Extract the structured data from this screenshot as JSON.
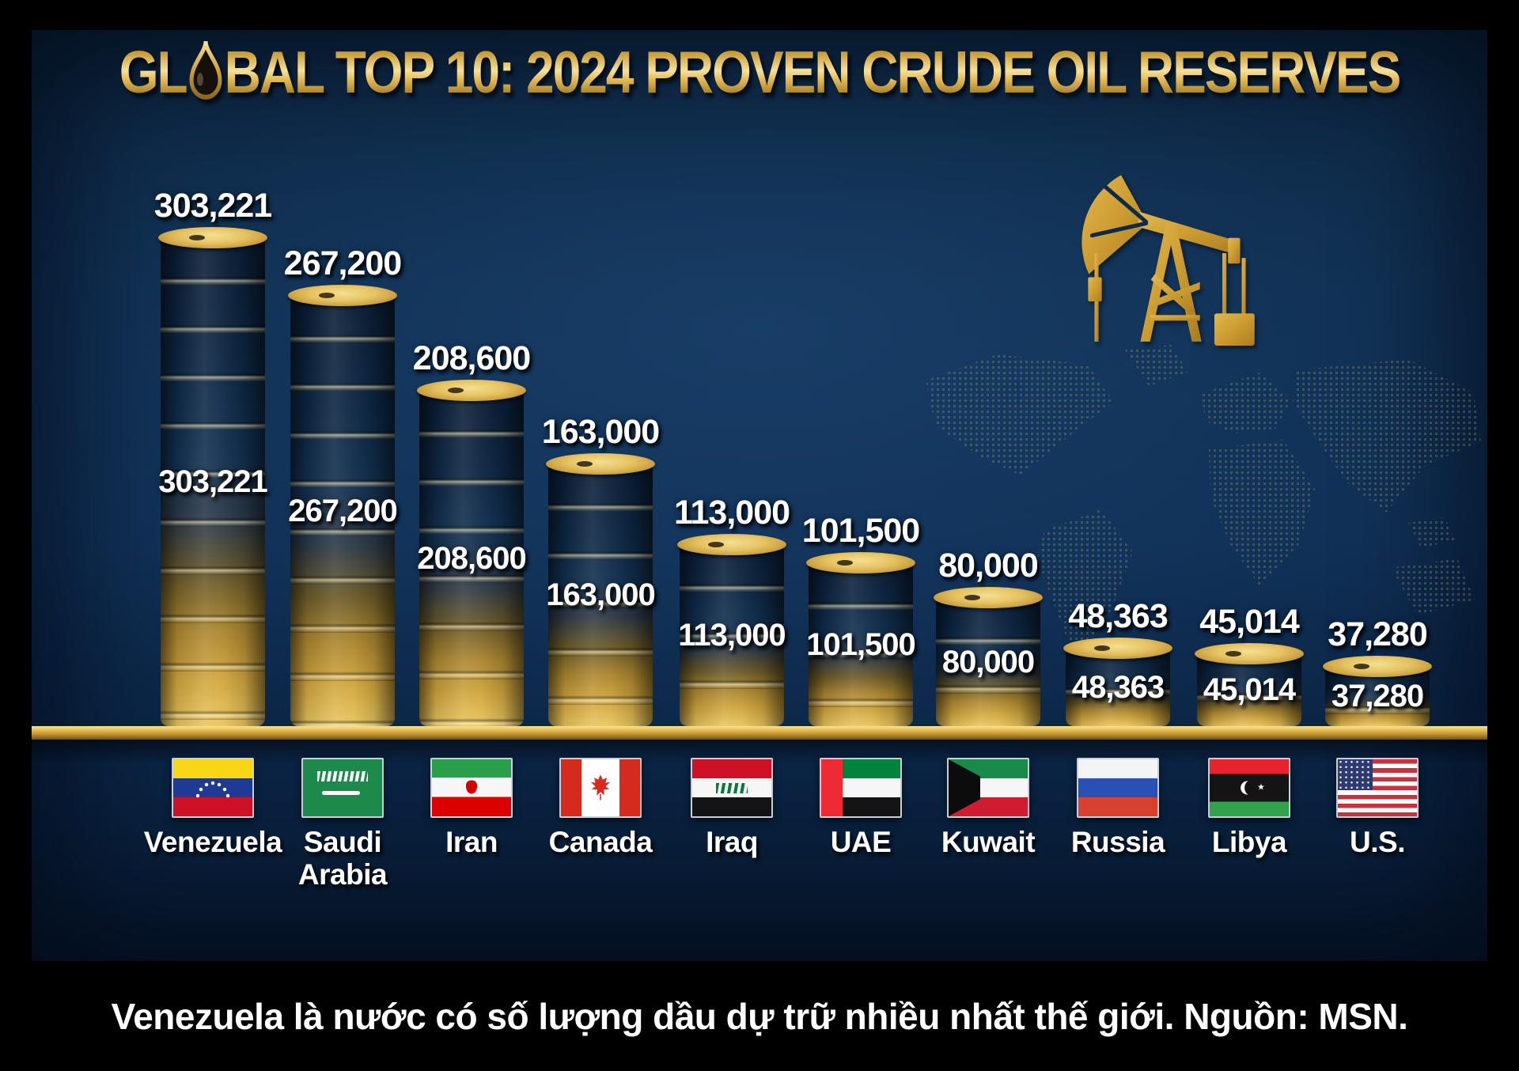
{
  "title": {
    "part_before_drop": "GL",
    "part_after_drop": "BAL TOP 10: 2024 PROVEN CRUDE OIL RESERVES"
  },
  "chart_data": {
    "type": "bar",
    "title": "GLOBAL TOP 10: 2024 PROVEN CRUDE OIL RESERVES",
    "categories": [
      "Venezuela",
      "Saudi Arabia",
      "Iran",
      "Canada",
      "Iraq",
      "UAE",
      "Kuwait",
      "Russia",
      "Libya",
      "U.S."
    ],
    "values": [
      303221,
      267200,
      208600,
      163000,
      113000,
      101500,
      80000,
      48363,
      45014,
      37280
    ],
    "value_labels": [
      "303,221",
      "267,200",
      "208,600",
      "163,000",
      "113,000",
      "101,500",
      "80,000",
      "48,363",
      "45,014",
      "37,280"
    ],
    "bar_style": "stacked-oil-barrels-navy-to-gold",
    "ylim": [
      0,
      310000
    ],
    "grid": false,
    "legend": null,
    "value_label_positions": [
      "above-bar",
      "middle-of-bar"
    ]
  },
  "columns": [
    {
      "name": "Venezuela",
      "label_lines": [
        "Venezuela"
      ],
      "flag": "flag-venezuela"
    },
    {
      "name": "Saudi Arabia",
      "label_lines": [
        "Saudi",
        "Arabia"
      ],
      "flag": "flag-saudi-arabia"
    },
    {
      "name": "Iran",
      "label_lines": [
        "Iran"
      ],
      "flag": "flag-iran"
    },
    {
      "name": "Canada",
      "label_lines": [
        "Canada"
      ],
      "flag": "flag-canada"
    },
    {
      "name": "Iraq",
      "label_lines": [
        "Iraq"
      ],
      "flag": "flag-iraq"
    },
    {
      "name": "UAE",
      "label_lines": [
        "UAE"
      ],
      "flag": "flag-uae"
    },
    {
      "name": "Kuwait",
      "label_lines": [
        "Kuwait"
      ],
      "flag": "flag-kuwait"
    },
    {
      "name": "Russia",
      "label_lines": [
        "Russia"
      ],
      "flag": "flag-russia"
    },
    {
      "name": "Libya",
      "label_lines": [
        "Libya"
      ],
      "flag": "flag-libya"
    },
    {
      "name": "U.S.",
      "label_lines": [
        "U.S."
      ],
      "flag": "flag-us"
    }
  ],
  "caption": "Venezuela là nước có số lượng dầu dự trữ nhiều nhất thế giới. Nguồn: MSN.",
  "decor_icons": {
    "title_drop": "oil-drop-icon",
    "pumpjack": "oil-pumpjack-icon",
    "map": "dotted-world-map"
  },
  "colors": {
    "background_navy": "#0e2c50",
    "frame_black": "#000000",
    "gold": "#cfa43c",
    "gold_light": "#f6e19b",
    "text_white": "#ffffff"
  }
}
